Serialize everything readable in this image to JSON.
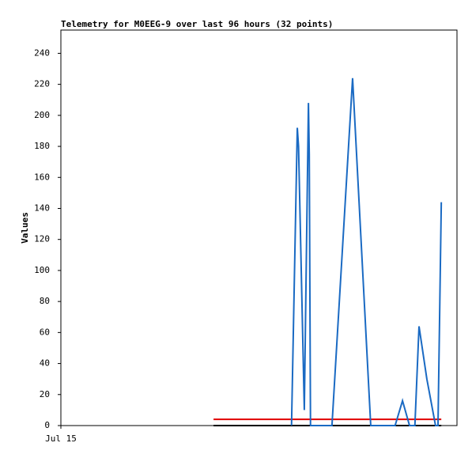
{
  "chart_data": {
    "type": "line",
    "title": "Telemetry for M0EEG-9 over last 96 hours (32 points)",
    "y_label": "Values",
    "xlim": [
      0,
      96
    ],
    "xticks": [
      {
        "value": 0,
        "label": "Jul 15"
      }
    ],
    "ylim": [
      0,
      255
    ],
    "yticks": [
      0,
      20,
      40,
      60,
      80,
      100,
      120,
      140,
      160,
      180,
      200,
      220,
      240
    ],
    "grid": false,
    "series": [
      {
        "color": "#000000",
        "x": [
          37.0,
          92.2
        ],
        "values": [
          0,
          0
        ]
      },
      {
        "color": "#e00000",
        "x": [
          37.0,
          92.2
        ],
        "values": [
          4,
          4
        ]
      },
      {
        "color": "#1a6ac3",
        "x": [
          55.9,
          57.3,
          57.6,
          59.0,
          60.0,
          60.2,
          60.5,
          65.7,
          70.7,
          75.1,
          81.0,
          82.8,
          84.5,
          85.8,
          86.8,
          88.7,
          90.8,
          91.4,
          92.2
        ],
        "values": [
          0,
          192,
          180,
          10,
          208,
          175,
          0,
          0,
          224,
          0,
          0,
          16,
          0,
          0,
          64,
          30,
          0,
          0,
          144
        ]
      }
    ]
  }
}
